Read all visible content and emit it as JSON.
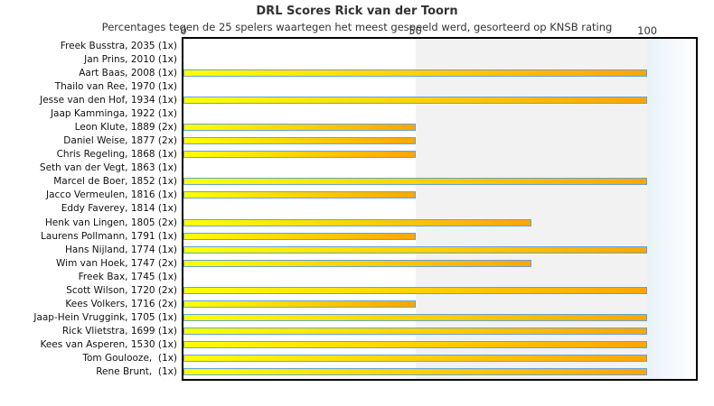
{
  "chart_data": {
    "type": "bar",
    "orientation": "horizontal",
    "title": "DRL Scores Rick van der Toorn",
    "subtitle": "Percentages tegen de 25 spelers waartegen het meest gespeeld werd, gesorteerd op KNSB rating",
    "xlabel": "",
    "ylabel": "",
    "xlim": [
      0,
      110.5
    ],
    "xticks": [
      0,
      50,
      100
    ],
    "legend": "none",
    "grid": "shaded band between 50 and 100",
    "categories": [
      "Freek Busstra, 2035 (1x)",
      "Jan Prins, 2010 (1x)",
      "Aart Baas, 2008 (1x)",
      "Thailo van Ree, 1970 (1x)",
      "Jesse van den Hof, 1934 (1x)",
      "Jaap Kamminga, 1922 (1x)",
      "Leon Klute, 1889 (2x)",
      "Daniel Weise, 1877 (2x)",
      "Chris Regeling, 1868 (1x)",
      "Seth van der Vegt, 1863 (1x)",
      "Marcel de Boer, 1852 (1x)",
      "Jacco Vermeulen, 1816 (1x)",
      "Eddy Faverey, 1814 (1x)",
      "Henk van Lingen, 1805 (2x)",
      "Laurens Pollmann, 1791 (1x)",
      "Hans Nijland, 1774 (1x)",
      "Wim van Hoek, 1747 (2x)",
      "Freek Bax, 1745 (1x)",
      "Scott Wilson, 1720 (2x)",
      "Kees Volkers, 1716 (2x)",
      "Jaap-Hein Vruggink, 1705 (1x)",
      "Rick Vlietstra, 1699 (1x)",
      "Kees van Asperen, 1530 (1x)",
      "Tom Goulooze,  (1x)",
      "Rene Brunt,  (1x)"
    ],
    "values": [
      0,
      0,
      100,
      0,
      100,
      0,
      50,
      50,
      50,
      0,
      100,
      50,
      0,
      75,
      50,
      100,
      75,
      0,
      100,
      50,
      100,
      100,
      100,
      100,
      100
    ],
    "colors": {
      "bar_gradient_start": "#ffff00",
      "bar_gradient_end": "#ffa500",
      "bar_border": "#66a3d6",
      "mid_band": "#f2f2f2",
      "overflow_band_start": "#e9f2f9",
      "overflow_band_end": "#ffffff",
      "plot_border": "#000000",
      "text": "#333333"
    }
  }
}
